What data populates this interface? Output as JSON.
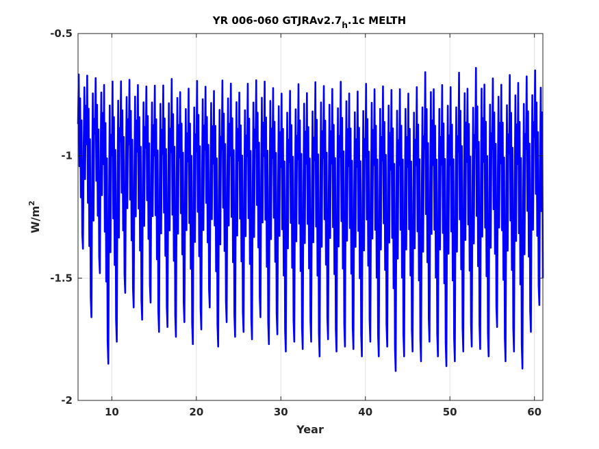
{
  "chart_data": {
    "type": "line",
    "title": {
      "prefix": "YR 006-060 GTJRAv2.7",
      "subscript": "h",
      "suffix": ".1c MELTH"
    },
    "xlabel": "Year",
    "ylabel": {
      "base": "W/m",
      "superscript": "2"
    },
    "xlim": [
      6,
      61
    ],
    "ylim": [
      -2,
      -0.5
    ],
    "x_ticks": [
      10,
      20,
      30,
      40,
      50,
      60
    ],
    "y_ticks": [
      -2,
      -1.5,
      -1,
      -0.5
    ],
    "x_tick_labels": [
      "10",
      "20",
      "30",
      "40",
      "50",
      "60"
    ],
    "y_tick_labels": [
      "-2",
      "-1.5",
      "-1",
      "-0.5"
    ],
    "grid": true,
    "line_color": "#0000ff",
    "series": [
      {
        "sampling": "monthly, one value per month from year 6 to year 61",
        "annual_peak_max": [
          -0.63,
          -0.62,
          -0.64,
          -0.65,
          -0.64,
          -0.65,
          -0.64,
          -0.66,
          -0.67,
          -0.66,
          -0.66,
          -0.63,
          -0.69,
          -0.67,
          -0.64,
          -0.67,
          -0.68,
          -0.64,
          -0.65,
          -0.69,
          -0.65,
          -0.64,
          -0.64,
          -0.67,
          -0.69,
          -0.68,
          -0.65,
          -0.69,
          -0.64,
          -0.66,
          -0.67,
          -0.64,
          -0.69,
          -0.68,
          -0.65,
          -0.67,
          -0.66,
          -0.67,
          -0.67,
          -0.69,
          -0.66,
          -0.6,
          -0.67,
          -0.65,
          -0.66,
          -0.6,
          -0.67,
          -0.58,
          -0.65,
          -0.63,
          -0.65,
          -0.61,
          -0.64,
          -0.62,
          -0.6
        ],
        "annual_trough_min": [
          -1.38,
          -1.66,
          -1.48,
          -1.85,
          -1.76,
          -1.56,
          -1.62,
          -1.67,
          -1.6,
          -1.72,
          -1.7,
          -1.74,
          -1.68,
          -1.77,
          -1.71,
          -1.62,
          -1.78,
          -1.68,
          -1.74,
          -1.72,
          -1.75,
          -1.66,
          -1.77,
          -1.73,
          -1.8,
          -1.76,
          -1.79,
          -1.76,
          -1.82,
          -1.75,
          -1.8,
          -1.78,
          -1.79,
          -1.82,
          -1.76,
          -1.82,
          -1.78,
          -1.88,
          -1.82,
          -1.8,
          -1.84,
          -1.76,
          -1.82,
          -1.86,
          -1.84,
          -1.8,
          -1.78,
          -1.79,
          -1.82,
          -1.7,
          -1.84,
          -1.8,
          -1.87,
          -1.72,
          -1.61
        ]
      }
    ]
  }
}
